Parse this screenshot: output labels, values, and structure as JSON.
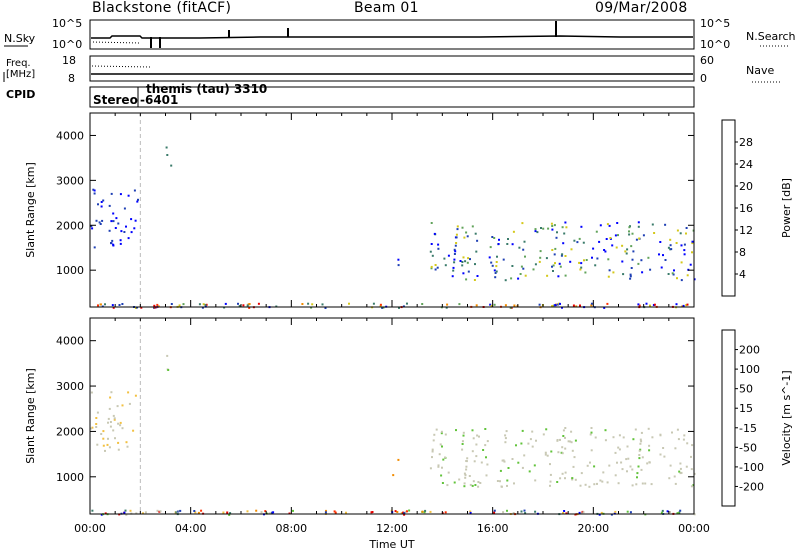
{
  "header": {
    "station": "Blackstone (fitACF)",
    "beam": "Beam 01",
    "date": "09/Mar/2008"
  },
  "strips": {
    "nsky_label": "N.Sky",
    "nsky_ticks": [
      "10^5",
      "10^0"
    ],
    "nsearch_label": "N.Search",
    "freq_label_line1": "Freq.",
    "freq_label_line2": "[MHz]",
    "freq_ticks": [
      "18",
      "8"
    ],
    "nave_label": "Nave",
    "nave_ticks": [
      "60",
      "0"
    ],
    "cpid_label": "CPID",
    "cpid_texts": [
      "Stereo",
      "-6401",
      "themis (tau) 3310"
    ]
  },
  "chart_data": [
    {
      "type": "heatmap",
      "title": "",
      "xlabel": "",
      "ylabel": "Slant Range [km]",
      "xlim": [
        0,
        24
      ],
      "ylim": [
        180,
        4500
      ],
      "yticks": [
        1000,
        2000,
        3000,
        4000
      ],
      "colorbar": {
        "label": "Power [dB]",
        "ticks": [
          "4",
          "8",
          "12",
          "16",
          "20",
          "24",
          "28"
        ],
        "colors": [
          "#0000ff",
          "#1e3fb4",
          "#3a7b6a",
          "#61a35a",
          "#d4c81a",
          "#f28c00",
          "#ff3000",
          "#e60000"
        ]
      },
      "regions": [
        {
          "t": [
            0.0,
            1.8
          ],
          "r": [
            1500,
            2900
          ],
          "level": "low"
        },
        {
          "t": [
            1.8,
            2.1
          ],
          "r": [
            2500,
            2800
          ],
          "level": "low"
        },
        {
          "t": [
            3.0,
            3.3
          ],
          "r": [
            3300,
            3900
          ],
          "level": "mixed"
        },
        {
          "t": [
            12.0,
            12.3
          ],
          "r": [
            1000,
            1400
          ],
          "level": "low"
        },
        {
          "t": [
            13.5,
            24.0
          ],
          "r": [
            800,
            2100
          ],
          "level": "mixed"
        }
      ]
    },
    {
      "type": "heatmap",
      "title": "",
      "xlabel": "Time UT",
      "ylabel": "Slant Range [km]",
      "xlim": [
        0,
        24
      ],
      "ylim": [
        180,
        4500
      ],
      "xticks": [
        "00:00",
        "04:00",
        "08:00",
        "12:00",
        "16:00",
        "20:00",
        "00:00"
      ],
      "yticks": [
        1000,
        2000,
        3000,
        4000
      ],
      "colorbar": {
        "label": "Velocity [m s^-1]",
        "ticks": [
          "200",
          "100",
          "50",
          "15",
          "-15",
          "-50",
          "-100",
          "-200"
        ],
        "colors": [
          "#0000ff",
          "#1e3fb4",
          "#3a7b6a",
          "#61c33a",
          "#c8c8b4",
          "#f2c040",
          "#f28c00",
          "#ff3000",
          "#e60000"
        ]
      },
      "regions": [
        {
          "t": [
            0.0,
            1.8
          ],
          "r": [
            1500,
            2900
          ],
          "level": "negative-small"
        },
        {
          "t": [
            3.0,
            3.3
          ],
          "r": [
            3300,
            3900
          ],
          "level": "near-zero"
        },
        {
          "t": [
            12.0,
            12.3
          ],
          "r": [
            1000,
            1400
          ],
          "level": "negative"
        },
        {
          "t": [
            13.5,
            24.0
          ],
          "r": [
            800,
            2100
          ],
          "level": "near-zero"
        }
      ]
    }
  ]
}
